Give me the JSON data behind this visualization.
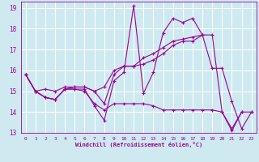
{
  "xlabel": "Windchill (Refroidissement éolien,°C)",
  "background_color": "#ceeaf0",
  "grid_color": "#ffffff",
  "line_color": "#990099",
  "xlim": [
    -0.5,
    23.5
  ],
  "ylim": [
    13,
    19.3
  ],
  "xticks": [
    0,
    1,
    2,
    3,
    4,
    5,
    6,
    7,
    8,
    9,
    10,
    11,
    12,
    13,
    14,
    15,
    16,
    17,
    18,
    19,
    20,
    21,
    22,
    23
  ],
  "yticks": [
    13,
    14,
    15,
    16,
    17,
    18,
    19
  ],
  "series": [
    [
      15.8,
      15.0,
      14.7,
      14.6,
      15.1,
      15.1,
      15.0,
      14.4,
      14.1,
      14.4,
      14.4,
      14.4,
      14.4,
      14.3,
      14.1,
      14.1,
      14.1,
      14.1,
      14.1,
      14.1,
      14.0,
      13.1,
      14.0,
      14.0
    ],
    [
      15.8,
      15.0,
      14.7,
      14.6,
      15.1,
      15.1,
      15.1,
      14.3,
      13.6,
      15.5,
      15.9,
      19.1,
      14.9,
      15.9,
      17.8,
      18.5,
      18.3,
      18.5,
      17.7,
      16.1,
      16.1,
      14.5,
      13.2,
      14.0
    ],
    [
      15.8,
      15.0,
      14.7,
      14.6,
      15.1,
      15.2,
      15.2,
      15.0,
      14.4,
      15.8,
      16.2,
      16.2,
      16.3,
      16.5,
      16.8,
      17.2,
      17.4,
      17.4,
      17.7,
      17.7,
      14.0,
      13.2,
      14.0,
      null
    ],
    [
      15.8,
      15.0,
      15.1,
      15.0,
      15.2,
      15.2,
      15.2,
      15.0,
      15.2,
      16.0,
      16.2,
      16.2,
      16.6,
      16.8,
      17.1,
      17.4,
      17.5,
      17.6,
      17.7,
      null,
      null,
      null,
      null,
      null
    ]
  ]
}
